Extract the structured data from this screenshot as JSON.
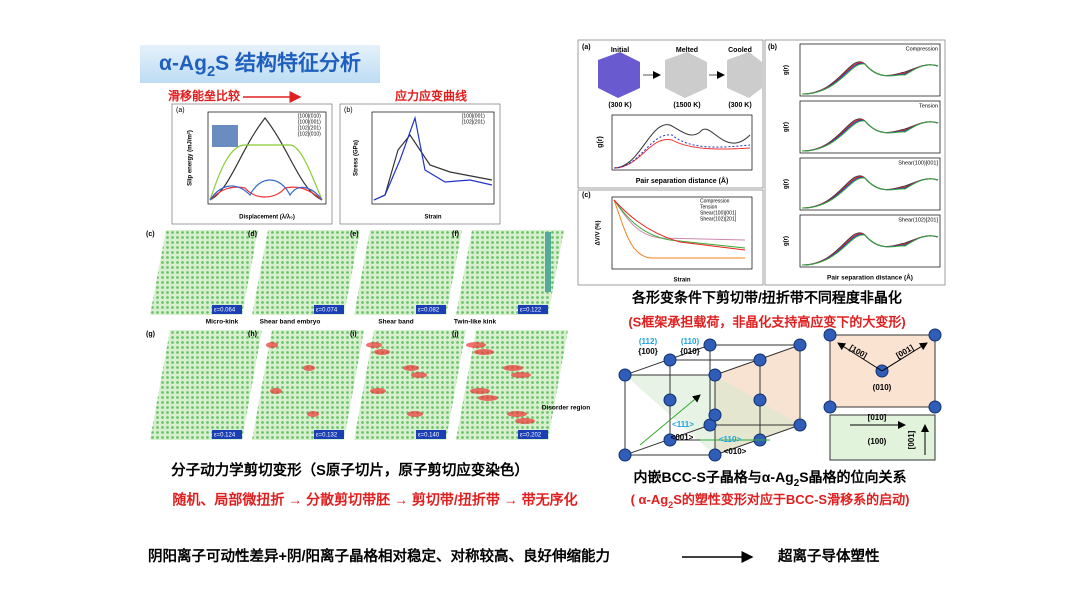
{
  "title": {
    "prefix": "α-Ag",
    "sub": "2",
    "suffix": "S 结构特征分析"
  },
  "left": {
    "energy_label": "滑移能垒比较",
    "stress_label": "应力应变曲线",
    "fig_a": {
      "tag": "(a)",
      "ylabel": "Slip energy (mJ/m²)",
      "xlabel": "Displacement (λ/λ₀)",
      "legend": [
        "[100](010)",
        "[100](001)",
        "[102](201)",
        "[102](010)"
      ]
    },
    "fig_b": {
      "tag": "(b)",
      "ylabel": "Stress (GPa)",
      "xlabel": "Strain",
      "legend": [
        "[100](001)",
        "[102](201)"
      ]
    },
    "panels": [
      {
        "tag": "(c)",
        "strain": "ε=0.064"
      },
      {
        "tag": "(d)",
        "strain": "ε=0.074"
      },
      {
        "tag": "(e)",
        "strain": "ε=0.082"
      },
      {
        "tag": "(f)",
        "strain": "ε=0.122"
      },
      {
        "tag": "(g)",
        "strain": "ε=0.124"
      },
      {
        "tag": "(h)",
        "strain": "ε=0.132"
      },
      {
        "tag": "(i)",
        "strain": "ε=0.140"
      },
      {
        "tag": "(j)",
        "strain": "ε=0.202"
      }
    ],
    "annotations": [
      "Micro-kink",
      "Shear band embryo",
      "Shear band",
      "Twin-like kink",
      "Disorder region"
    ],
    "caption": "分子动力学剪切变形（S原子切片，原子剪切应变染色）",
    "flow": "随机、局部微扭折 → 分散剪切带胚 → 剪切带/扭折带 → 带无序化"
  },
  "right": {
    "fig_a": {
      "tag": "(a)",
      "states": [
        "Initial",
        "Melted",
        "Cooled"
      ],
      "temps": [
        "(300 K)",
        "(1500 K)",
        "(300 K)"
      ],
      "ylabel": "g(r)",
      "xlabel": "Pair separation distance (Å)"
    },
    "fig_c": {
      "tag": "(c)",
      "ylabel": "ΔV/V (%)",
      "xlabel": "Strain",
      "legend": [
        "Compression",
        "Tension",
        "Shear(100)[001]",
        "Shear(102)[201]"
      ]
    },
    "fig_b": {
      "tag": "(b)",
      "panels": [
        "Compression",
        "Tension",
        "Shear(100)[001]",
        "Shear(102)[201]"
      ],
      "ylabel": "g(r)",
      "xlabel": "Pair separation distance (Å)"
    },
    "caption": "各形变条件下剪切带/扭折带不同程度非晶化",
    "note": "(S框架承担载荷，非晶化支持高应变下的大变形)",
    "crystal": {
      "labels": [
        "(112)",
        "{100}",
        "(110)",
        "{010}",
        "<111>",
        "<001>",
        "<110>",
        "<010>"
      ],
      "box1": [
        "[100]",
        "[001]",
        "(010)"
      ],
      "box2": [
        "[010]",
        "[001]",
        "(100)"
      ]
    },
    "caption2": {
      "before": "内嵌BCC-S子晶格与α-Ag",
      "sub": "2",
      "after": "S晶格的位向关系"
    },
    "note2": {
      "before": "( α-Ag",
      "sub": "2",
      "after": "S的塑性变形对应于BCC-S滑移系的启动)"
    }
  },
  "bottom": {
    "cause": "阴阳离子可动性差异+阴/阳离子晶格相对稳定、对称较高、良好伸缩能力",
    "effect": "超离子导体塑性"
  }
}
